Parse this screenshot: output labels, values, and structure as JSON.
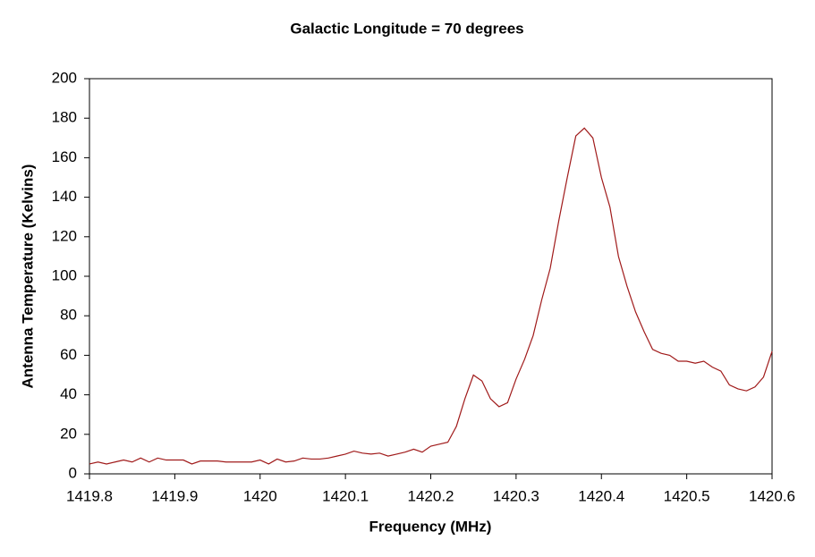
{
  "chart_data": {
    "type": "line",
    "title": "Galactic Longitude = 70 degrees",
    "x_label": "Frequency (MHz)",
    "y_label": "Antenna Temperature (Kelvins)",
    "x": [
      1419.8,
      1419.81,
      1419.82,
      1419.83,
      1419.84,
      1419.85,
      1419.86,
      1419.87,
      1419.88,
      1419.89,
      1419.9,
      1419.91,
      1419.92,
      1419.93,
      1419.94,
      1419.95,
      1419.96,
      1419.97,
      1419.98,
      1419.99,
      1420,
      1420.01,
      1420.02,
      1420.03,
      1420.04,
      1420.05,
      1420.06,
      1420.07,
      1420.08,
      1420.09,
      1420.1,
      1420.11,
      1420.12,
      1420.13,
      1420.14,
      1420.15,
      1420.16,
      1420.17,
      1420.18,
      1420.19,
      1420.2,
      1420.21,
      1420.22,
      1420.23,
      1420.24,
      1420.25,
      1420.26,
      1420.27,
      1420.28,
      1420.29,
      1420.3,
      1420.31,
      1420.32,
      1420.33,
      1420.34,
      1420.35,
      1420.36,
      1420.37,
      1420.38,
      1420.39,
      1420.4,
      1420.41,
      1420.42,
      1420.43,
      1420.44,
      1420.45,
      1420.46,
      1420.47,
      1420.48,
      1420.49,
      1420.5,
      1420.51,
      1420.52,
      1420.53,
      1420.54,
      1420.55,
      1420.56,
      1420.57,
      1420.58,
      1420.59,
      1420.6
    ],
    "series": [
      {
        "name": "Antenna Temperature",
        "color": "#a01a1a",
        "values": [
          5,
          6,
          5,
          6,
          7,
          6,
          8,
          6,
          8,
          7,
          7,
          7,
          5,
          6.5,
          6.5,
          6.5,
          6,
          6,
          6,
          6,
          7,
          5,
          7.5,
          6,
          6.5,
          8,
          7.5,
          7.5,
          8,
          9,
          10,
          11.5,
          10.5,
          10,
          10.5,
          9,
          10,
          11,
          12.5,
          11,
          14,
          15,
          16,
          24,
          38,
          50,
          47,
          38,
          34,
          36,
          48,
          58,
          70,
          88,
          104,
          128,
          150,
          171,
          175,
          170,
          150,
          135,
          110,
          95,
          82,
          72,
          63,
          61,
          60,
          57,
          57,
          56,
          57,
          54,
          52,
          45,
          43,
          42,
          44,
          49,
          62
        ]
      }
    ],
    "xlim": [
      1419.8,
      1420.6
    ],
    "xticks": [
      1419.8,
      1419.9,
      1420,
      1420.1,
      1420.2,
      1420.3,
      1420.4,
      1420.5,
      1420.6
    ],
    "ylim": [
      0,
      200
    ],
    "yticks": [
      0,
      20,
      40,
      60,
      80,
      100,
      120,
      140,
      160,
      180,
      200
    ],
    "grid": false
  }
}
